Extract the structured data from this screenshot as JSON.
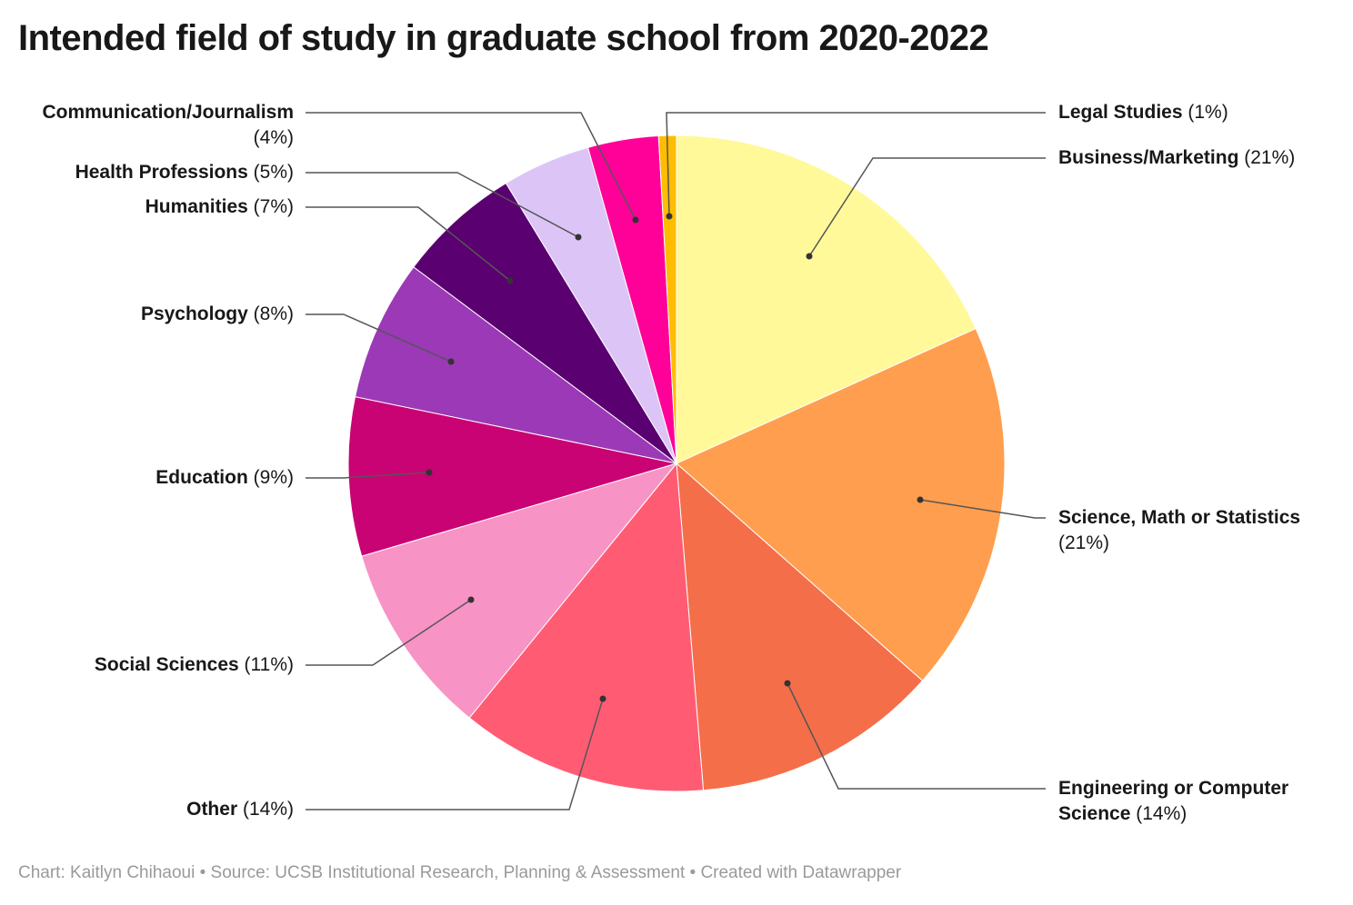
{
  "title": "Intended field of study in graduate school from 2020-2022",
  "footer": "Chart: Kaitlyn Chihaoui • Source: UCSB Institutional Research, Planning & Assessment • Created with Datawrapper",
  "chart_data": {
    "type": "pie",
    "title": "Intended field of study in graduate school from 2020-2022",
    "start": "12 o'clock, clockwise",
    "slices": [
      {
        "label": "Business/Marketing",
        "value": 21,
        "display": "(21%)",
        "color": "#fff99a"
      },
      {
        "label": "Science, Math or Statistics",
        "value": 21,
        "display": "(21%)",
        "color": "#ff9e4f"
      },
      {
        "label": "Engineering or Computer Science",
        "value": 14,
        "display": "(14%)",
        "color": "#f46e4a"
      },
      {
        "label": "Other",
        "value": 14,
        "display": "(14%)",
        "color": "#ff5c74"
      },
      {
        "label": "Social Sciences",
        "value": 11,
        "display": "(11%)",
        "color": "#f893c6"
      },
      {
        "label": "Education",
        "value": 9,
        "display": "(9%)",
        "color": "#c90373"
      },
      {
        "label": "Psychology",
        "value": 8,
        "display": "(8%)",
        "color": "#9b39b7"
      },
      {
        "label": "Humanities",
        "value": 7,
        "display": "(7%)",
        "color": "#5a0070"
      },
      {
        "label": "Health Professions",
        "value": 5,
        "display": "(5%)",
        "color": "#dcc5f6"
      },
      {
        "label": "Communication/Journalism",
        "value": 4,
        "display": "(4%)",
        "color": "#ff0099"
      },
      {
        "label": "Legal Studies",
        "value": 1,
        "display": "(1%)",
        "color": "#ffbd00"
      }
    ]
  }
}
